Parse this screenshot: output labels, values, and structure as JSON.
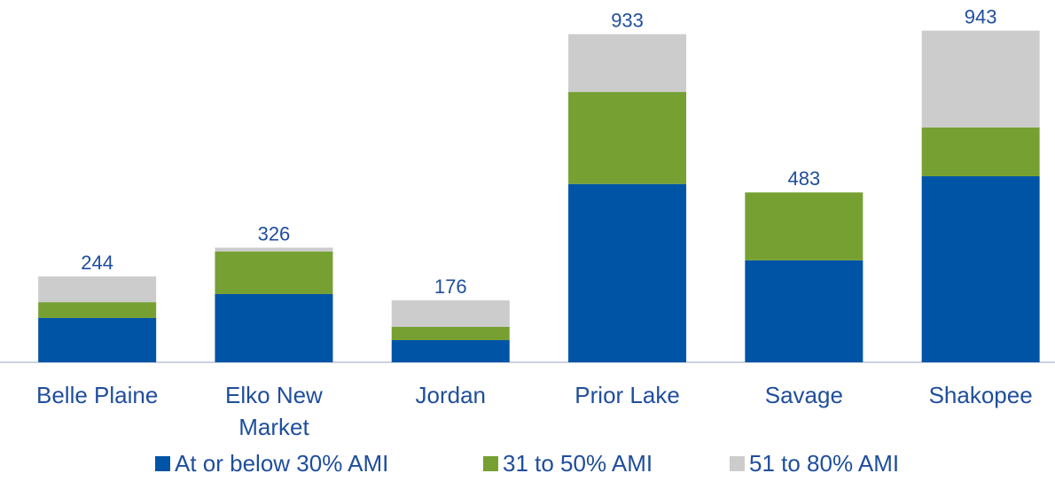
{
  "chart_data": {
    "type": "stacked_bar",
    "categories": [
      "Belle Plaine",
      "Elko New Market",
      "Jordan",
      "Prior Lake",
      "Savage",
      "Shakopee"
    ],
    "series": [
      {
        "name": "At or below 30% AMI",
        "color": "#0054a6",
        "values": [
          126,
          194,
          63,
          507,
          290,
          529
        ]
      },
      {
        "name": "31 to 50% AMI",
        "color": "#77a033",
        "values": [
          45,
          121,
          38,
          262,
          193,
          139
        ]
      },
      {
        "name": "51 to 80% AMI",
        "color": "#cccccc",
        "values": [
          73,
          11,
          75,
          164,
          0,
          275
        ]
      }
    ],
    "totals": [
      244,
      326,
      176,
      933,
      483,
      943
    ],
    "ylim": [
      0,
      1000
    ],
    "legend": "bottom"
  }
}
